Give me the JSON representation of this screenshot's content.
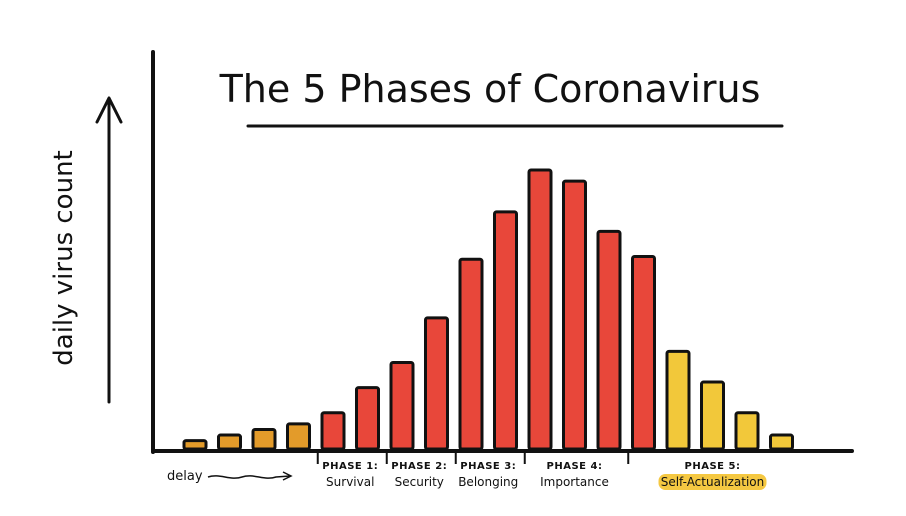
{
  "chart_data": {
    "type": "bar",
    "title": "The 5 Phases of Coronavirus",
    "ylabel": "daily virus count",
    "xlabel": "",
    "ylim": [
      0,
      100
    ],
    "values": [
      3,
      5,
      7,
      9,
      13,
      22,
      31,
      47,
      68,
      85,
      100,
      96,
      78,
      69,
      35,
      24,
      13,
      5
    ],
    "bar_colors": [
      "#e39b2a",
      "#e39b2a",
      "#e39b2a",
      "#e39b2a",
      "#e8473a",
      "#e8473a",
      "#e8473a",
      "#e8473a",
      "#e8473a",
      "#e8473a",
      "#e8473a",
      "#e8473a",
      "#e8473a",
      "#e8473a",
      "#f2c83a",
      "#f2c83a",
      "#f2c83a",
      "#f2c83a"
    ],
    "segments": [
      {
        "label": "delay",
        "phase": "",
        "name": "delay",
        "bars": [
          0,
          3
        ]
      },
      {
        "phase": "PHASE 1:",
        "name": "Survival",
        "bars": [
          4,
          5
        ]
      },
      {
        "phase": "PHASE 2:",
        "name": "Security",
        "bars": [
          6,
          7
        ]
      },
      {
        "phase": "PHASE 3:",
        "name": "Belonging",
        "bars": [
          8,
          9
        ]
      },
      {
        "phase": "PHASE 4:",
        "name": "Importance",
        "bars": [
          10,
          12
        ]
      },
      {
        "phase": "PHASE 5:",
        "name": "Self-Actualization",
        "bars": [
          13,
          17
        ],
        "highlight": "#f5c842"
      }
    ],
    "grid": false,
    "legend": "none"
  }
}
